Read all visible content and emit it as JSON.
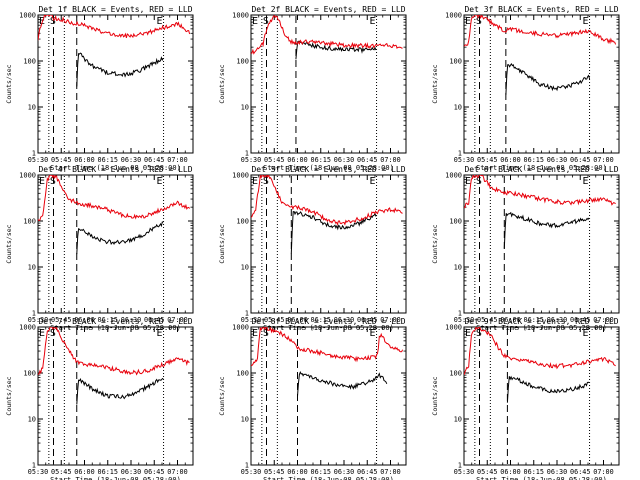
{
  "chart_data": [
    {
      "type": "line",
      "title": "Det 1f BLACK = Events, RED = LLD",
      "xlabel": "Start Time (18-Jun-08 05:28:00)",
      "ylabel": "Counts/sec",
      "xlim": [
        "05:30",
        "07:10"
      ],
      "ylim": [
        1,
        1000
      ],
      "log_y": true,
      "x_ticks": [
        "05:30",
        "05:45",
        "06:00",
        "06:15",
        "06:30",
        "06:45",
        "07:00"
      ],
      "y_ticks": [
        "1",
        "10",
        "100",
        "1000"
      ],
      "marker_labels": [
        "E",
        "S",
        "E"
      ],
      "dotted_lines": [
        "05:37",
        "05:47",
        "06:51"
      ],
      "dashed_lines": [
        "05:40",
        "05:55"
      ],
      "series": [
        {
          "name": "Events",
          "color": "#000000",
          "x": [
            "05:55",
            "05:56",
            "06:00",
            "06:05",
            "06:15",
            "06:25",
            "06:35",
            "06:45",
            "06:51"
          ],
          "y": [
            30,
            160,
            110,
            80,
            55,
            50,
            60,
            90,
            120
          ]
        },
        {
          "name": "LLD",
          "color": "#e8000b",
          "x": [
            "05:30",
            "05:32",
            "05:34",
            "05:36",
            "05:38",
            "05:40",
            "05:45",
            "05:50",
            "06:00",
            "06:10",
            "06:20",
            "06:30",
            "06:40",
            "06:50",
            "07:00",
            "07:08"
          ],
          "y": [
            300,
            650,
            1000,
            1000,
            1000,
            850,
            800,
            700,
            600,
            450,
            360,
            350,
            400,
            520,
            650,
            400
          ]
        }
      ]
    },
    {
      "type": "line",
      "title": "Det 2f BLACK = Events, RED = LLD",
      "xlabel": "Start Time (18-Jun-08 05:28:00)",
      "ylabel": "Counts/sec",
      "xlim": [
        "05:30",
        "07:10"
      ],
      "ylim": [
        1,
        1000
      ],
      "log_y": true,
      "x_ticks": [
        "05:30",
        "05:45",
        "06:00",
        "06:15",
        "06:30",
        "06:45",
        "07:00"
      ],
      "y_ticks": [
        "1",
        "10",
        "100",
        "1000"
      ],
      "marker_labels": [
        "E",
        "S",
        "E"
      ],
      "dotted_lines": [
        "05:37",
        "05:47",
        "06:51"
      ],
      "dashed_lines": [
        "05:40",
        "05:59"
      ],
      "series": [
        {
          "name": "Events",
          "color": "#000000",
          "x": [
            "05:59",
            "06:00",
            "06:05",
            "06:15",
            "06:25",
            "06:35",
            "06:45",
            "06:51"
          ],
          "y": [
            120,
            280,
            230,
            200,
            180,
            180,
            170,
            180
          ]
        },
        {
          "name": "LLD",
          "color": "#e8000b",
          "x": [
            "05:30",
            "05:35",
            "05:38",
            "05:40",
            "05:45",
            "05:48",
            "05:52",
            "05:56",
            "06:00",
            "06:10",
            "06:20",
            "06:30",
            "06:40",
            "06:50",
            "07:00",
            "07:08"
          ],
          "y": [
            150,
            180,
            250,
            500,
            1000,
            800,
            350,
            260,
            250,
            270,
            240,
            220,
            220,
            210,
            220,
            200
          ]
        }
      ]
    },
    {
      "type": "line",
      "title": "Det 3f BLACK = Events, RED = LLD",
      "xlabel": "Start Time (18-Jun-08 05:28:00)",
      "ylabel": "Counts/sec",
      "xlim": [
        "05:30",
        "07:10"
      ],
      "ylim": [
        1,
        1000
      ],
      "log_y": true,
      "x_ticks": [
        "05:30",
        "05:45",
        "06:00",
        "06:15",
        "06:30",
        "06:45",
        "07:00"
      ],
      "y_ticks": [
        "1",
        "10",
        "100",
        "1000"
      ],
      "marker_labels": [
        "E",
        "S",
        "E"
      ],
      "dotted_lines": [
        "05:37",
        "05:47",
        "06:51"
      ],
      "dashed_lines": [
        "05:40",
        "05:57"
      ],
      "series": [
        {
          "name": "Events",
          "color": "#000000",
          "x": [
            "05:57",
            "05:58",
            "06:02",
            "06:10",
            "06:20",
            "06:30",
            "06:40",
            "06:51"
          ],
          "y": [
            18,
            80,
            80,
            50,
            30,
            25,
            30,
            45
          ]
        },
        {
          "name": "LLD",
          "color": "#e8000b",
          "x": [
            "05:30",
            "05:33",
            "05:35",
            "05:38",
            "05:42",
            "05:50",
            "05:56",
            "06:00",
            "06:10",
            "06:20",
            "06:30",
            "06:40",
            "06:50",
            "07:00",
            "07:08"
          ],
          "y": [
            200,
            250,
            900,
            1000,
            900,
            600,
            450,
            500,
            420,
            380,
            360,
            400,
            450,
            300,
            250
          ]
        }
      ]
    },
    {
      "type": "line",
      "title": "Det 4f BLACK = Events, RED = LLD",
      "xlabel": "Start Time (18-Jun-08 05:28:00)",
      "ylabel": "Counts/sec",
      "xlim": [
        "05:30",
        "07:10"
      ],
      "ylim": [
        1,
        1000
      ],
      "log_y": true,
      "x_ticks": [
        "05:30",
        "05:45",
        "06:00",
        "06:15",
        "06:30",
        "06:45",
        "07:00"
      ],
      "y_ticks": [
        "1",
        "10",
        "100",
        "1000"
      ],
      "marker_labels": [
        "E",
        "S",
        "E"
      ],
      "dotted_lines": [
        "05:37",
        "05:47",
        "06:51"
      ],
      "dashed_lines": [
        "05:40",
        "05:55"
      ],
      "series": [
        {
          "name": "Events",
          "color": "#000000",
          "x": [
            "05:55",
            "05:56",
            "06:00",
            "06:05",
            "06:15",
            "06:25",
            "06:35",
            "06:45",
            "06:51"
          ],
          "y": [
            20,
            70,
            60,
            45,
            35,
            35,
            45,
            70,
            90
          ]
        },
        {
          "name": "LLD",
          "color": "#e8000b",
          "x": [
            "05:30",
            "05:33",
            "05:36",
            "05:38",
            "05:42",
            "05:46",
            "05:50",
            "05:55",
            "06:00",
            "06:10",
            "06:20",
            "06:30",
            "06:40",
            "06:50",
            "07:00",
            "07:08"
          ],
          "y": [
            100,
            120,
            800,
            1000,
            900,
            500,
            300,
            250,
            230,
            200,
            150,
            120,
            130,
            180,
            250,
            180
          ]
        }
      ]
    },
    {
      "type": "line",
      "title": "Det 5f BLACK = Events, RED = LLD",
      "xlabel": "Start Time (18-Jun-08 05:28:00)",
      "ylabel": "Counts/sec",
      "xlim": [
        "05:30",
        "07:10"
      ],
      "ylim": [
        1,
        1000
      ],
      "log_y": true,
      "x_ticks": [
        "05:30",
        "05:45",
        "06:00",
        "06:15",
        "06:30",
        "06:45",
        "07:00"
      ],
      "y_ticks": [
        "1",
        "10",
        "100",
        "1000"
      ],
      "marker_labels": [
        "E",
        "S",
        "E"
      ],
      "dotted_lines": [
        "05:37",
        "05:47",
        "06:51"
      ],
      "dashed_lines": [
        "05:40",
        "05:56"
      ],
      "series": [
        {
          "name": "Events",
          "color": "#000000",
          "x": [
            "05:56",
            "05:57",
            "06:00",
            "06:10",
            "06:20",
            "06:30",
            "06:40",
            "06:51"
          ],
          "y": [
            20,
            150,
            150,
            120,
            80,
            70,
            90,
            140
          ]
        },
        {
          "name": "LLD",
          "color": "#e8000b",
          "x": [
            "05:30",
            "05:33",
            "05:36",
            "05:38",
            "05:42",
            "05:46",
            "05:50",
            "05:56",
            "06:00",
            "06:10",
            "06:20",
            "06:30",
            "06:40",
            "06:50",
            "07:00",
            "07:08"
          ],
          "y": [
            120,
            180,
            900,
            1000,
            900,
            500,
            250,
            200,
            200,
            160,
            100,
            90,
            110,
            150,
            180,
            150
          ]
        }
      ]
    },
    {
      "type": "line",
      "title": "Det 6f BLACK = Events, RED = LLD",
      "xlabel": "Start Time (18-Jun-08 05:28:00)",
      "ylabel": "Counts/sec",
      "xlim": [
        "05:30",
        "07:10"
      ],
      "ylim": [
        1,
        1000
      ],
      "log_y": true,
      "x_ticks": [
        "05:30",
        "05:45",
        "06:00",
        "06:15",
        "06:30",
        "06:45",
        "07:00"
      ],
      "y_ticks": [
        "1",
        "10",
        "100",
        "1000"
      ],
      "marker_labels": [
        "E",
        "S",
        "E"
      ],
      "dotted_lines": [
        "05:37",
        "05:47",
        "06:51"
      ],
      "dashed_lines": [
        "05:40",
        "05:56"
      ],
      "series": [
        {
          "name": "Events",
          "color": "#000000",
          "x": [
            "05:56",
            "05:57",
            "06:00",
            "06:10",
            "06:20",
            "06:30",
            "06:40",
            "06:51"
          ],
          "y": [
            25,
            150,
            140,
            110,
            85,
            80,
            95,
            110
          ]
        },
        {
          "name": "LLD",
          "color": "#e8000b",
          "x": [
            "05:30",
            "05:33",
            "05:35",
            "05:38",
            "05:42",
            "05:48",
            "05:56",
            "06:00",
            "06:10",
            "06:20",
            "06:30",
            "06:40",
            "06:50",
            "07:00",
            "07:08"
          ],
          "y": [
            200,
            250,
            900,
            1000,
            900,
            500,
            420,
            400,
            350,
            300,
            260,
            250,
            280,
            300,
            230
          ]
        }
      ]
    },
    {
      "type": "line",
      "title": "Det 7f BLACK = Events, RED = LLD",
      "xlabel": "Start Time (18-Jun-08 05:28:00)",
      "ylabel": "Counts/sec",
      "xlim": [
        "05:30",
        "07:10"
      ],
      "ylim": [
        1,
        1000
      ],
      "log_y": true,
      "x_ticks": [
        "05:30",
        "05:45",
        "06:00",
        "06:15",
        "06:30",
        "06:45",
        "07:00"
      ],
      "y_ticks": [
        "1",
        "10",
        "100",
        "1000"
      ],
      "marker_labels": [
        "E",
        "S",
        "E"
      ],
      "dotted_lines": [
        "05:37",
        "05:47",
        "06:51"
      ],
      "dashed_lines": [
        "05:40",
        "05:55"
      ],
      "series": [
        {
          "name": "Events",
          "color": "#000000",
          "x": [
            "05:55",
            "05:56",
            "06:00",
            "06:05",
            "06:15",
            "06:25",
            "06:35",
            "06:45",
            "06:51"
          ],
          "y": [
            20,
            70,
            60,
            45,
            32,
            30,
            40,
            60,
            80
          ]
        },
        {
          "name": "LLD",
          "color": "#e8000b",
          "x": [
            "05:30",
            "05:33",
            "05:36",
            "05:38",
            "05:42",
            "05:46",
            "05:50",
            "05:55",
            "06:00",
            "06:10",
            "06:20",
            "06:30",
            "06:40",
            "06:50",
            "07:00",
            "07:08"
          ],
          "y": [
            100,
            120,
            800,
            1000,
            900,
            500,
            300,
            170,
            150,
            140,
            120,
            100,
            110,
            150,
            200,
            160
          ]
        }
      ]
    },
    {
      "type": "line",
      "title": "Det 8f BLACK = Events, RED = LLD",
      "xlabel": "Start Time (18-Jun-08 05:28:00)",
      "ylabel": "Counts/sec",
      "xlim": [
        "05:30",
        "07:10"
      ],
      "ylim": [
        1,
        1000
      ],
      "log_y": true,
      "x_ticks": [
        "05:30",
        "05:45",
        "06:00",
        "06:15",
        "06:30",
        "06:45",
        "07:00"
      ],
      "y_ticks": [
        "1",
        "10",
        "100",
        "1000"
      ],
      "marker_labels": [
        "E",
        "S",
        "E"
      ],
      "dotted_lines": [
        "05:37",
        "05:47",
        "06:51"
      ],
      "dashed_lines": [
        "05:40",
        "06:00"
      ],
      "series": [
        {
          "name": "Events",
          "color": "#000000",
          "x": [
            "06:00",
            "06:01",
            "06:05",
            "06:15",
            "06:25",
            "06:35",
            "06:45",
            "06:50",
            "06:53",
            "06:58"
          ],
          "y": [
            30,
            100,
            90,
            70,
            55,
            50,
            60,
            75,
            90,
            60
          ]
        },
        {
          "name": "LLD",
          "color": "#e8000b",
          "x": [
            "05:30",
            "05:34",
            "05:36",
            "05:38",
            "05:42",
            "05:50",
            "05:56",
            "06:00",
            "06:10",
            "06:20",
            "06:30",
            "06:40",
            "06:50",
            "06:52",
            "06:53",
            "07:00",
            "07:08"
          ],
          "y": [
            150,
            200,
            900,
            1000,
            900,
            700,
            500,
            350,
            300,
            250,
            220,
            200,
            220,
            260,
            700,
            350,
            300
          ]
        }
      ]
    },
    {
      "type": "line",
      "title": "Det 9f BLACK = Events, RED = LLD",
      "xlabel": "Start Time (18-Jun-08 05:28:00)",
      "ylabel": "Counts/sec",
      "xlim": [
        "05:30",
        "07:10"
      ],
      "ylim": [
        1,
        1000
      ],
      "log_y": true,
      "x_ticks": [
        "05:30",
        "05:45",
        "06:00",
        "06:15",
        "06:30",
        "06:45",
        "07:00"
      ],
      "y_ticks": [
        "1",
        "10",
        "100",
        "1000"
      ],
      "marker_labels": [
        "E",
        "S",
        "E"
      ],
      "dotted_lines": [
        "05:37",
        "05:47",
        "06:51"
      ],
      "dashed_lines": [
        "05:40",
        "05:58"
      ],
      "series": [
        {
          "name": "Events",
          "color": "#000000",
          "x": [
            "05:58",
            "05:59",
            "06:05",
            "06:15",
            "06:25",
            "06:35",
            "06:45",
            "06:51"
          ],
          "y": [
            25,
            80,
            70,
            50,
            40,
            40,
            50,
            60
          ]
        },
        {
          "name": "LLD",
          "color": "#e8000b",
          "x": [
            "05:30",
            "05:33",
            "05:35",
            "05:38",
            "05:42",
            "05:48",
            "05:55",
            "06:00",
            "06:10",
            "06:20",
            "06:30",
            "06:40",
            "06:50",
            "07:00",
            "07:08"
          ],
          "y": [
            100,
            150,
            700,
            1000,
            900,
            600,
            250,
            200,
            180,
            150,
            140,
            150,
            180,
            200,
            150
          ]
        }
      ]
    }
  ]
}
